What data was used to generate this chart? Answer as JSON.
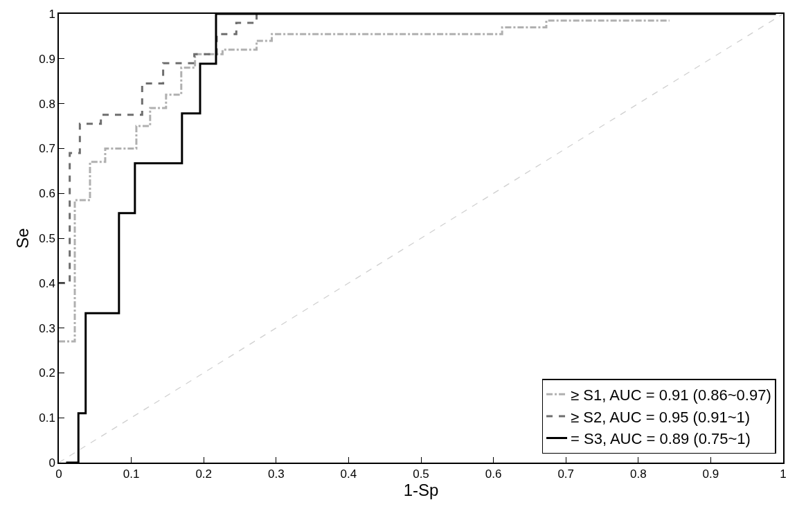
{
  "chart_data": {
    "type": "step",
    "xlabel": "1-Sp",
    "ylabel": "Se",
    "xlim": [
      0,
      1
    ],
    "ylim": [
      0,
      1
    ],
    "xticks": [
      0,
      0.1,
      0.2,
      0.3,
      0.4,
      0.5,
      0.6,
      0.7,
      0.8,
      0.9,
      1
    ],
    "yticks": [
      0,
      0.1,
      0.2,
      0.3,
      0.4,
      0.5,
      0.6,
      0.7,
      0.8,
      0.9,
      1
    ],
    "legend": "bottom right",
    "marker": "none",
    "series": [
      {
        "name": "≥ S1, AUC = 0.91 (0.86~0.97)",
        "color": "#b0b0b0",
        "line_style": "dashdot",
        "x": [
          0,
          0.022,
          0.043,
          0.064,
          0.107,
          0.126,
          0.148,
          0.169,
          0.188,
          0.226,
          0.273,
          0.294,
          0.612,
          0.673,
          0.843
        ],
        "values": [
          0.27,
          0.585,
          0.67,
          0.7,
          0.75,
          0.79,
          0.82,
          0.88,
          0.91,
          0.92,
          0.94,
          0.955,
          0.97,
          0.985,
          0.985
        ]
      },
      {
        "name": "≥ S2, AUC = 0.95 (0.91~1)",
        "color": "#6e6e6e",
        "line_style": "dashed",
        "x": [
          0,
          0.015,
          0.029,
          0.058,
          0.115,
          0.144,
          0.187,
          0.218,
          0.245,
          0.273
        ],
        "values": [
          0.4,
          0.69,
          0.755,
          0.775,
          0.845,
          0.89,
          0.91,
          0.955,
          0.98,
          1
        ]
      },
      {
        "name": "= S3, AUC = 0.89 (0.75~1)",
        "color": "#000000",
        "line_style": "solid",
        "x": [
          0.01,
          0.027,
          0.037,
          0.083,
          0.105,
          0.17,
          0.195,
          0.217,
          0.99
        ],
        "values": [
          0,
          0.11,
          0.333,
          0.556,
          0.667,
          0.778,
          0.889,
          1,
          1
        ]
      },
      {
        "type": "line",
        "color": "#d0d0d0",
        "line_style": "dashed",
        "x": [
          0,
          1
        ],
        "values": [
          0,
          1
        ]
      }
    ]
  }
}
